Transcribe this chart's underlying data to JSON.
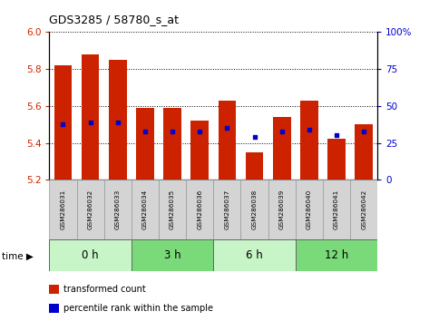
{
  "title": "GDS3285 / 58780_s_at",
  "samples": [
    "GSM286031",
    "GSM286032",
    "GSM286033",
    "GSM286034",
    "GSM286035",
    "GSM286036",
    "GSM286037",
    "GSM286038",
    "GSM286039",
    "GSM286040",
    "GSM286041",
    "GSM286042"
  ],
  "bar_values": [
    5.82,
    5.88,
    5.85,
    5.59,
    5.59,
    5.52,
    5.63,
    5.35,
    5.54,
    5.63,
    5.42,
    5.5
  ],
  "bar_base": 5.2,
  "percentile_values": [
    5.5,
    5.51,
    5.51,
    5.46,
    5.46,
    5.46,
    5.48,
    5.43,
    5.46,
    5.47,
    5.44,
    5.46
  ],
  "ylim_left": [
    5.2,
    6.0
  ],
  "ylim_right": [
    0,
    100
  ],
  "yticks_left": [
    5.2,
    5.4,
    5.6,
    5.8,
    6.0
  ],
  "yticks_right": [
    0,
    25,
    50,
    75,
    100
  ],
  "bar_color": "#cc2200",
  "percentile_color": "#0000cc",
  "time_groups": [
    {
      "label": "0 h",
      "start": 0,
      "end": 3,
      "color": "#c8f5c8"
    },
    {
      "label": "3 h",
      "start": 3,
      "end": 6,
      "color": "#7ada7a"
    },
    {
      "label": "6 h",
      "start": 6,
      "end": 9,
      "color": "#c8f5c8"
    },
    {
      "label": "12 h",
      "start": 9,
      "end": 12,
      "color": "#7ada7a"
    }
  ],
  "time_label": "time",
  "legend_bar_label": "transformed count",
  "legend_pct_label": "percentile rank within the sample",
  "tick_label_color_left": "#cc2200",
  "tick_label_color_right": "#0000cc",
  "bg_color": "#ffffff",
  "bar_width": 0.65,
  "grid_color": "#000000"
}
